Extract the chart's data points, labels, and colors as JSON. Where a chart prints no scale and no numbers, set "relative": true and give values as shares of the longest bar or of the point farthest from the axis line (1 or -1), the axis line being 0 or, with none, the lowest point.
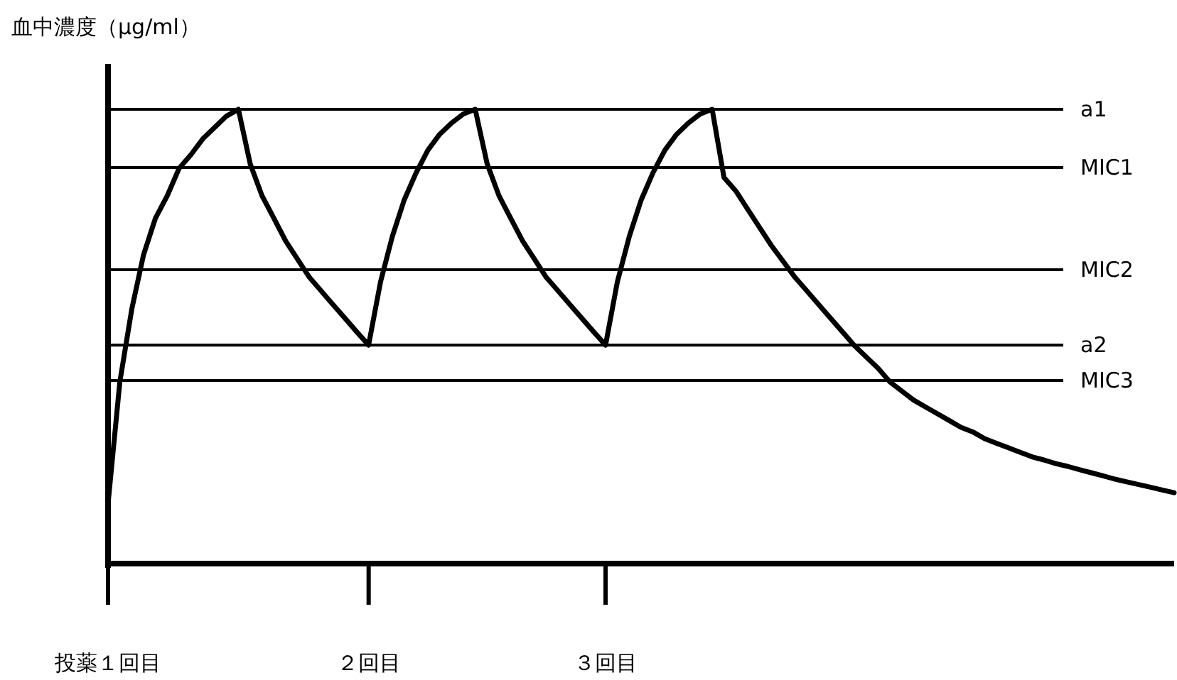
{
  "chart_data": {
    "type": "line",
    "ylabel": "血中濃度（μg/ml）",
    "relative": true,
    "categories": [
      "投薬１回目",
      null,
      null,
      null,
      null,
      null,
      null,
      null,
      null,
      null,
      null,
      null,
      null,
      null,
      null,
      null,
      null,
      null,
      null,
      null,
      null,
      null,
      "２回目",
      null,
      null,
      null,
      null,
      null,
      null,
      null,
      null,
      null,
      null,
      null,
      null,
      null,
      null,
      null,
      null,
      null,
      null,
      null,
      "３回目",
      null,
      null,
      null,
      null,
      null,
      null,
      null,
      null,
      null,
      null,
      null,
      null,
      null,
      null,
      null,
      null,
      null,
      null,
      null,
      null,
      null,
      null,
      null,
      null,
      null,
      null,
      null,
      null,
      null,
      null,
      null,
      null,
      null,
      null,
      null,
      null,
      null,
      null,
      null,
      null,
      null,
      null,
      null,
      null,
      null,
      null,
      null,
      null
    ],
    "series": [
      {
        "color": "#000000",
        "values": [
          0.131,
          0.4,
          0.56,
          0.68,
          0.76,
          0.81,
          0.87,
          0.9,
          0.935,
          0.96,
          0.985,
          1.0,
          0.88,
          0.81,
          0.76,
          0.71,
          0.67,
          0.63,
          0.6,
          0.57,
          0.54,
          0.51,
          0.481,
          0.62,
          0.72,
          0.8,
          0.86,
          0.91,
          0.945,
          0.97,
          0.99,
          1.0,
          0.88,
          0.81,
          0.76,
          0.71,
          0.67,
          0.63,
          0.6,
          0.57,
          0.54,
          0.51,
          0.481,
          0.62,
          0.72,
          0.8,
          0.86,
          0.91,
          0.945,
          0.97,
          0.99,
          1.0,
          0.85,
          0.82,
          0.78,
          0.74,
          0.7,
          0.665,
          0.63,
          0.6,
          0.57,
          0.54,
          0.51,
          0.48,
          0.455,
          0.43,
          0.4,
          0.38,
          0.36,
          0.345,
          0.33,
          0.315,
          0.3,
          0.29,
          0.275,
          0.265,
          0.255,
          0.245,
          0.235,
          0.228,
          0.22,
          0.214,
          0.207,
          0.2,
          0.193,
          0.186,
          0.18,
          0.174,
          0.168,
          0.162,
          0.156
        ]
      }
    ],
    "ref_lines": [
      {
        "axis": "y",
        "value": 1.0,
        "label": "a1",
        "color": "#000000"
      },
      {
        "axis": "y",
        "value": 0.872,
        "label": "MIC1",
        "color": "#000000"
      },
      {
        "axis": "y",
        "value": 0.647,
        "label": "MIC2",
        "color": "#000000"
      },
      {
        "axis": "y",
        "value": 0.481,
        "label": "a2",
        "color": "#000000"
      },
      {
        "axis": "y",
        "value": 0.403,
        "label": "MIC3",
        "color": "#000000"
      }
    ]
  }
}
